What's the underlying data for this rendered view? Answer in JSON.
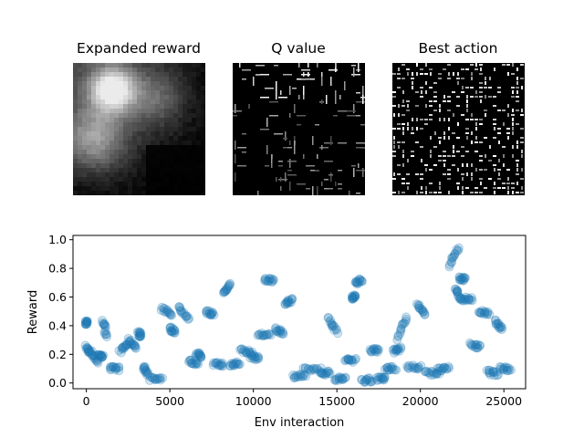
{
  "panels": [
    {
      "title": "Expanded reward"
    },
    {
      "title": "Q value"
    },
    {
      "title": "Best action"
    }
  ],
  "chart_data": {
    "type": "scatter",
    "title": "",
    "xlabel": "Env interaction",
    "ylabel": "Reward",
    "xlim": [
      -800,
      26300
    ],
    "ylim": [
      -0.04,
      1.03
    ],
    "xticks": [
      0,
      5000,
      10000,
      15000,
      20000,
      25000
    ],
    "yticks": [
      0.0,
      0.2,
      0.4,
      0.6,
      0.8,
      1.0
    ],
    "xtick_labels": [
      "0",
      "5000",
      "10000",
      "15000",
      "20000",
      "25000"
    ],
    "ytick_labels": [
      "0.0",
      "0.2",
      "0.4",
      "0.6",
      "0.8",
      "1.0"
    ],
    "grid": false,
    "marker_color": "#1f77b4",
    "clusters": [
      {
        "x": [
          0,
          200
        ],
        "y": [
          0.25,
          0.21
        ]
      },
      {
        "x": [
          300,
          700
        ],
        "y": [
          0.21,
          0.15
        ]
      },
      {
        "x": [
          700,
          1000
        ],
        "y": [
          0.2,
          0.18
        ]
      },
      {
        "x": [
          1000,
          1200
        ],
        "y": [
          0.44,
          0.33
        ]
      },
      {
        "x": [
          1400,
          2000
        ],
        "y": [
          0.1,
          0.1
        ]
      },
      {
        "x": [
          2000,
          2500
        ],
        "y": [
          0.22,
          0.28
        ]
      },
      {
        "x": [
          2500,
          3000
        ],
        "y": [
          0.3,
          0.25
        ]
      },
      {
        "x": [
          3100,
          3300
        ],
        "y": [
          0.35,
          0.33
        ]
      },
      {
        "x": [
          3400,
          3700
        ],
        "y": [
          0.11,
          0.07
        ]
      },
      {
        "x": [
          3800,
          4500
        ],
        "y": [
          0.03,
          0.02
        ]
      },
      {
        "x": [
          4500,
          5100
        ],
        "y": [
          0.52,
          0.48
        ]
      },
      {
        "x": [
          5000,
          5300
        ],
        "y": [
          0.38,
          0.36
        ]
      },
      {
        "x": [
          5500,
          6100
        ],
        "y": [
          0.53,
          0.45
        ]
      },
      {
        "x": [
          6100,
          6700
        ],
        "y": [
          0.15,
          0.14
        ]
      },
      {
        "x": [
          6600,
          6900
        ],
        "y": [
          0.2,
          0.19
        ]
      },
      {
        "x": [
          7200,
          7600
        ],
        "y": [
          0.5,
          0.48
        ]
      },
      {
        "x": [
          7600,
          8200
        ],
        "y": [
          0.13,
          0.13
        ]
      },
      {
        "x": [
          8200,
          8600
        ],
        "y": [
          0.62,
          0.69
        ]
      },
      {
        "x": [
          8600,
          9200
        ],
        "y": [
          0.13,
          0.14
        ]
      },
      {
        "x": [
          9200,
          9900
        ],
        "y": [
          0.23,
          0.21
        ]
      },
      {
        "x": [
          9800,
          10300
        ],
        "y": [
          0.19,
          0.17
        ]
      },
      {
        "x": [
          10300,
          11000
        ],
        "y": [
          0.34,
          0.33
        ]
      },
      {
        "x": [
          10700,
          11200
        ],
        "y": [
          0.72,
          0.72
        ]
      },
      {
        "x": [
          11300,
          11800
        ],
        "y": [
          0.38,
          0.34
        ]
      },
      {
        "x": [
          11900,
          12300
        ],
        "y": [
          0.56,
          0.58
        ]
      },
      {
        "x": [
          12400,
          13100
        ],
        "y": [
          0.05,
          0.05
        ]
      },
      {
        "x": [
          13000,
          14000
        ],
        "y": [
          0.09,
          0.1
        ]
      },
      {
        "x": [
          14000,
          14600
        ],
        "y": [
          0.06,
          0.08
        ]
      },
      {
        "x": [
          14500,
          15000
        ],
        "y": [
          0.45,
          0.36
        ]
      },
      {
        "x": [
          14900,
          15500
        ],
        "y": [
          0.03,
          0.03
        ]
      },
      {
        "x": [
          15500,
          16100
        ],
        "y": [
          0.16,
          0.16
        ]
      },
      {
        "x": [
          15900,
          16100
        ],
        "y": [
          0.6,
          0.6
        ]
      },
      {
        "x": [
          16100,
          16500
        ],
        "y": [
          0.7,
          0.72
        ]
      },
      {
        "x": [
          16500,
          17100
        ],
        "y": [
          0.02,
          0.02
        ]
      },
      {
        "x": [
          17000,
          17500
        ],
        "y": [
          0.23,
          0.23
        ]
      },
      {
        "x": [
          17400,
          17900
        ],
        "y": [
          0.03,
          0.03
        ]
      },
      {
        "x": [
          17900,
          18500
        ],
        "y": [
          0.1,
          0.1
        ]
      },
      {
        "x": [
          18400,
          18800
        ],
        "y": [
          0.22,
          0.24
        ]
      },
      {
        "x": [
          18600,
          19200
        ],
        "y": [
          0.3,
          0.47
        ]
      },
      {
        "x": [
          19200,
          20000
        ],
        "y": [
          0.11,
          0.11
        ]
      },
      {
        "x": [
          19800,
          20300
        ],
        "y": [
          0.55,
          0.48
        ]
      },
      {
        "x": [
          20300,
          21100
        ],
        "y": [
          0.07,
          0.07
        ]
      },
      {
        "x": [
          21000,
          21700
        ],
        "y": [
          0.09,
          0.1
        ]
      },
      {
        "x": [
          21700,
          22300
        ],
        "y": [
          0.82,
          0.95
        ]
      },
      {
        "x": [
          22100,
          22400
        ],
        "y": [
          0.66,
          0.58
        ]
      },
      {
        "x": [
          22300,
          22700
        ],
        "y": [
          0.73,
          0.72
        ]
      },
      {
        "x": [
          22500,
          23100
        ],
        "y": [
          0.59,
          0.58
        ]
      },
      {
        "x": [
          23000,
          23600
        ],
        "y": [
          0.27,
          0.25
        ]
      },
      {
        "x": [
          23500,
          24100
        ],
        "y": [
          0.5,
          0.48
        ]
      },
      {
        "x": [
          24000,
          24600
        ],
        "y": [
          0.08,
          0.06
        ]
      },
      {
        "x": [
          24500,
          24900
        ],
        "y": [
          0.43,
          0.38
        ]
      },
      {
        "x": [
          24800,
          25400
        ],
        "y": [
          0.11,
          0.09
        ]
      },
      {
        "x": [
          0,
          0
        ],
        "y": [
          0.42,
          0.42
        ]
      }
    ]
  }
}
